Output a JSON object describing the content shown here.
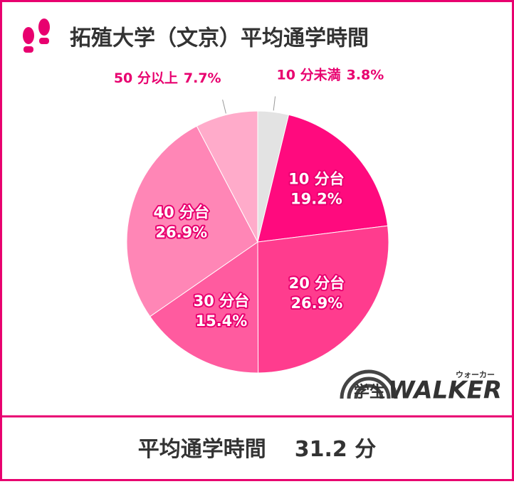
{
  "chart_data": {
    "type": "pie",
    "title": "拓殖大学（文京）平均通学時間",
    "categories": [
      "10 分未満",
      "10 分台",
      "20 分台",
      "30 分台",
      "40 分台",
      "50 分以上"
    ],
    "values": [
      3.8,
      19.2,
      26.9,
      15.4,
      26.9,
      7.7
    ],
    "value_labels": [
      "3.8%",
      "19.2%",
      "26.9%",
      "15.4%",
      "26.9%",
      "7.7%"
    ],
    "colors": [
      "#e3e3e3",
      "#ff0a7e",
      "#ff3c8e",
      "#ff5b9f",
      "#ff86b6",
      "#ffabca"
    ]
  },
  "footer": {
    "label": "平均通学時間",
    "value": "31.2 分"
  },
  "logo": {
    "prefix": "学生",
    "brand": "WALKER",
    "ruby": "ウォーカー"
  }
}
